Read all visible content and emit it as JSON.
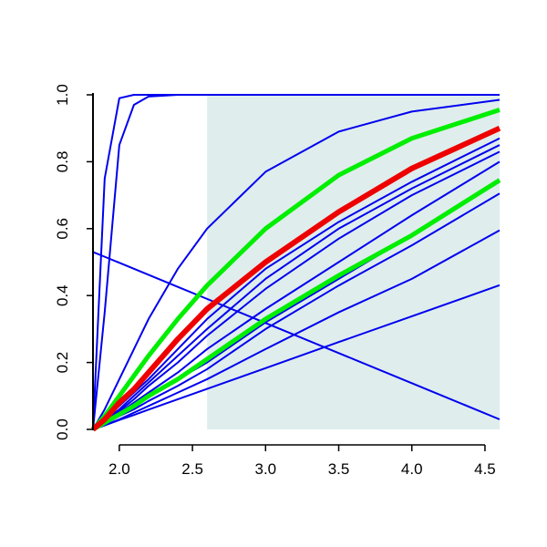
{
  "chart_data": {
    "type": "line",
    "x": [
      1.82,
      1.9,
      2.0,
      2.1,
      2.2,
      2.4,
      2.6,
      3.0,
      3.5,
      4.0,
      4.6
    ],
    "xlim": [
      1.82,
      4.6
    ],
    "ylim": [
      0,
      1
    ],
    "xticks": [
      {
        "value": 2.0,
        "label": "2.0"
      },
      {
        "value": 2.5,
        "label": "2.5"
      },
      {
        "value": 3.0,
        "label": "3.0"
      },
      {
        "value": 3.5,
        "label": "3.5"
      },
      {
        "value": 4.0,
        "label": "4.0"
      },
      {
        "value": 4.5,
        "label": "4.5"
      }
    ],
    "yticks": [
      {
        "value": 0,
        "label": "0.0"
      },
      {
        "value": 0.2,
        "label": "0.2"
      },
      {
        "value": 0.4,
        "label": "0.4"
      },
      {
        "value": 0.6,
        "label": "0.6"
      },
      {
        "value": 0.8,
        "label": "0.8"
      },
      {
        "value": 1,
        "label": "1.0"
      }
    ],
    "shaded_region": {
      "xlim": [
        2.6,
        4.6
      ],
      "color": "#dfeded"
    },
    "series": [
      {
        "color": "#0000ee",
        "width": 2,
        "values": [
          0,
          0.75,
          0.99,
          1,
          1,
          1,
          1,
          1,
          1,
          1,
          1
        ]
      },
      {
        "color": "#0000ee",
        "width": 2,
        "values": [
          0,
          0.35,
          0.85,
          0.97,
          0.995,
          1,
          1,
          1,
          1,
          1,
          1
        ]
      },
      {
        "color": "#0000ee",
        "width": 2,
        "values": [
          0,
          0.06,
          0.15,
          0.24,
          0.33,
          0.48,
          0.6,
          0.77,
          0.89,
          0.95,
          0.985
        ]
      },
      {
        "color": "#0000ee",
        "width": 2,
        "values": [
          0,
          0.03,
          0.07,
          0.11,
          0.15,
          0.24,
          0.33,
          0.48,
          0.62,
          0.74,
          0.87
        ]
      },
      {
        "color": "#0000ee",
        "width": 2,
        "values": [
          0,
          0.025,
          0.06,
          0.1,
          0.14,
          0.22,
          0.3,
          0.45,
          0.6,
          0.72,
          0.85
        ]
      },
      {
        "color": "#0000ee",
        "width": 2,
        "values": [
          0,
          0.02,
          0.055,
          0.09,
          0.13,
          0.2,
          0.28,
          0.42,
          0.57,
          0.7,
          0.83
        ]
      },
      {
        "color": "#0000ee",
        "width": 2,
        "values": [
          0,
          0.02,
          0.05,
          0.08,
          0.11,
          0.17,
          0.24,
          0.36,
          0.5,
          0.64,
          0.8
        ]
      },
      {
        "color": "#0000ee",
        "width": 2,
        "values": [
          0,
          0.02,
          0.045,
          0.07,
          0.095,
          0.15,
          0.2,
          0.32,
          0.45,
          0.58,
          0.74
        ]
      },
      {
        "color": "#0000ee",
        "width": 2,
        "values": [
          0,
          0.015,
          0.04,
          0.06,
          0.085,
          0.13,
          0.18,
          0.3,
          0.43,
          0.55,
          0.705
        ]
      },
      {
        "color": "#0000ee",
        "width": 2,
        "values": [
          0,
          0.012,
          0.03,
          0.05,
          0.07,
          0.11,
          0.15,
          0.24,
          0.35,
          0.45,
          0.595
        ]
      },
      {
        "color": "#0000ee",
        "width": 2,
        "values": [
          0,
          0.012,
          0.028,
          0.043,
          0.059,
          0.09,
          0.121,
          0.183,
          0.261,
          0.338,
          0.431
        ]
      },
      {
        "color": "#0000ee",
        "width": 2,
        "values": [
          0.53,
          0.516,
          0.498,
          0.48,
          0.462,
          0.426,
          0.39,
          0.318,
          0.228,
          0.138,
          0.03
        ]
      },
      {
        "color": "#00ee00",
        "width": 5,
        "values": [
          0,
          0.04,
          0.1,
          0.16,
          0.22,
          0.33,
          0.43,
          0.6,
          0.76,
          0.87,
          0.955
        ]
      },
      {
        "color": "#00ee00",
        "width": 5,
        "values": [
          0,
          0.02,
          0.045,
          0.07,
          0.1,
          0.15,
          0.21,
          0.33,
          0.46,
          0.58,
          0.745
        ]
      },
      {
        "color": "#ee0000",
        "width": 6,
        "values": [
          0,
          0.03,
          0.08,
          0.12,
          0.17,
          0.27,
          0.36,
          0.5,
          0.65,
          0.78,
          0.9
        ]
      }
    ]
  }
}
